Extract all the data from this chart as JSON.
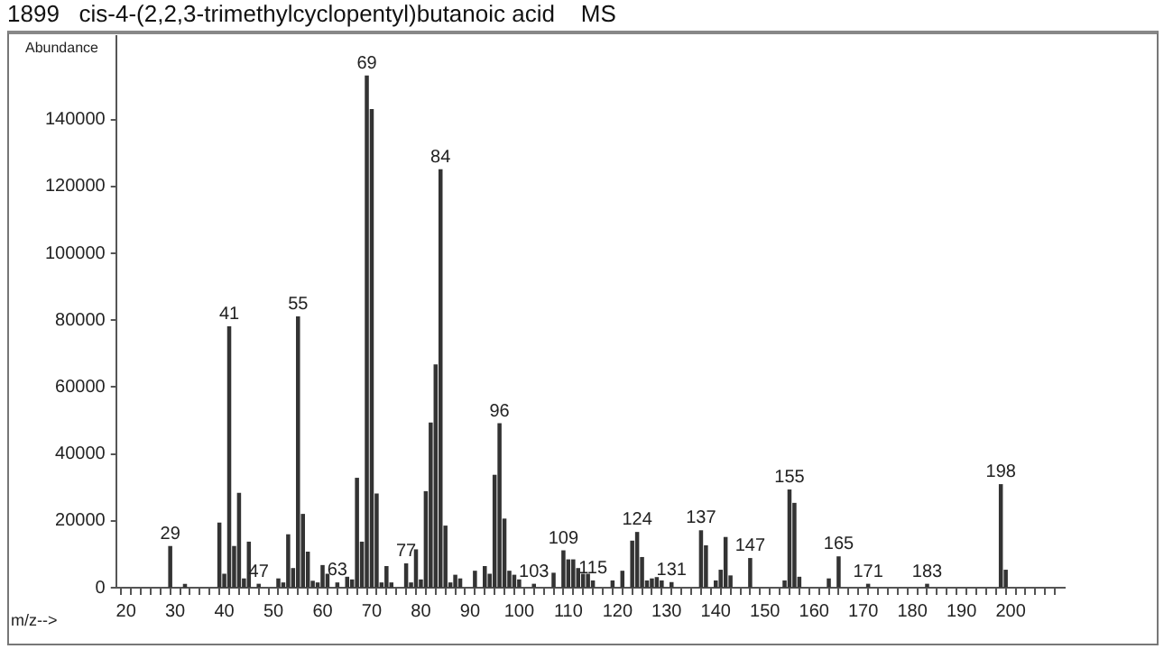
{
  "chart_data": {
    "type": "bar",
    "title": "1899   cis-4-(2,2,3-trimethylcyclopentyl)butanoic acid    MS",
    "xlabel": "m/z-->",
    "ylabel": "Abundance",
    "color": "#333333",
    "x": [
      29,
      32,
      39,
      40,
      41,
      42,
      43,
      44,
      45,
      47,
      51,
      52,
      53,
      54,
      55,
      56,
      57,
      58,
      59,
      60,
      61,
      63,
      65,
      66,
      67,
      68,
      69,
      70,
      71,
      72,
      73,
      74,
      77,
      78,
      79,
      80,
      81,
      82,
      83,
      84,
      85,
      86,
      87,
      88,
      91,
      93,
      94,
      95,
      96,
      97,
      98,
      99,
      100,
      103,
      107,
      109,
      110,
      111,
      112,
      113,
      114,
      115,
      119,
      121,
      123,
      124,
      125,
      126,
      127,
      128,
      129,
      131,
      137,
      138,
      140,
      141,
      142,
      143,
      147,
      154,
      155,
      156,
      157,
      163,
      165,
      171,
      183,
      198,
      199
    ],
    "values": [
      12300,
      1000,
      19300,
      4000,
      78000,
      12300,
      28200,
      2600,
      13600,
      1000,
      2600,
      1400,
      15800,
      5700,
      81000,
      21900,
      10600,
      1900,
      1400,
      6600,
      4000,
      1400,
      3100,
      2300,
      32700,
      13600,
      153000,
      143000,
      28000,
      1400,
      6300,
      1400,
      7100,
      1400,
      11300,
      2300,
      28700,
      49200,
      66600,
      125000,
      18400,
      1400,
      3700,
      2600,
      4900,
      6300,
      4000,
      33600,
      49000,
      20500,
      4900,
      3700,
      2300,
      1000,
      4300,
      11000,
      8300,
      8300,
      5700,
      4000,
      4000,
      2000,
      2000,
      4900,
      13900,
      16500,
      9000,
      2000,
      2600,
      3000,
      2000,
      1500,
      17000,
      12500,
      2000,
      5200,
      15000,
      3500,
      8700,
      2000,
      29200,
      25200,
      3100,
      2600,
      9200,
      1000,
      1000,
      30800,
      5200
    ],
    "annotations": [
      {
        "text": "29",
        "x": 29,
        "y": 12300
      },
      {
        "text": "41",
        "x": 41,
        "y": 78000
      },
      {
        "text": "47",
        "x": 47,
        "y": 1000
      },
      {
        "text": "55",
        "x": 55,
        "y": 81000
      },
      {
        "text": "63",
        "x": 63,
        "y": 1400
      },
      {
        "text": "69",
        "x": 69,
        "y": 153000
      },
      {
        "text": "77",
        "x": 77,
        "y": 7100
      },
      {
        "text": "84",
        "x": 84,
        "y": 125000
      },
      {
        "text": "96",
        "x": 96,
        "y": 49000
      },
      {
        "text": "103",
        "x": 103,
        "y": 1000
      },
      {
        "text": "109",
        "x": 109,
        "y": 11000
      },
      {
        "text": "115",
        "x": 115,
        "y": 2000
      },
      {
        "text": "124",
        "x": 124,
        "y": 16500
      },
      {
        "text": "131",
        "x": 131,
        "y": 1500
      },
      {
        "text": "137",
        "x": 137,
        "y": 17000
      },
      {
        "text": "147",
        "x": 147,
        "y": 8700
      },
      {
        "text": "155",
        "x": 155,
        "y": 29200
      },
      {
        "text": "165",
        "x": 165,
        "y": 9200
      },
      {
        "text": "171",
        "x": 171,
        "y": 1000
      },
      {
        "text": "183",
        "x": 183,
        "y": 1000
      },
      {
        "text": "198",
        "x": 198,
        "y": 30800
      }
    ],
    "xlim": [
      18,
      211
    ],
    "xticks": [
      20,
      {
        "value": 22,
        "label": null
      },
      {
        "value": 24,
        "label": null
      },
      {
        "value": 26,
        "label": null
      },
      {
        "value": 28,
        "label": null
      },
      30,
      {
        "value": 32,
        "label": null
      },
      {
        "value": 34,
        "label": null
      },
      {
        "value": 36,
        "label": null
      },
      {
        "value": 38,
        "label": null
      },
      40,
      {
        "value": 42,
        "label": null
      },
      {
        "value": 44,
        "label": null
      },
      {
        "value": 46,
        "label": null
      },
      {
        "value": 48,
        "label": null
      },
      50,
      {
        "value": 52,
        "label": null
      },
      {
        "value": 54,
        "label": null
      },
      {
        "value": 56,
        "label": null
      },
      {
        "value": 58,
        "label": null
      },
      60,
      {
        "value": 62,
        "label": null
      },
      {
        "value": 64,
        "label": null
      },
      {
        "value": 66,
        "label": null
      },
      {
        "value": 68,
        "label": null
      },
      70,
      {
        "value": 72,
        "label": null
      },
      {
        "value": 74,
        "label": null
      },
      {
        "value": 76,
        "label": null
      },
      {
        "value": 78,
        "label": null
      },
      80,
      {
        "value": 82,
        "label": null
      },
      {
        "value": 84,
        "label": null
      },
      {
        "value": 86,
        "label": null
      },
      {
        "value": 88,
        "label": null
      },
      90,
      {
        "value": 92,
        "label": null
      },
      {
        "value": 94,
        "label": null
      },
      {
        "value": 96,
        "label": null
      },
      {
        "value": 98,
        "label": null
      },
      100,
      {
        "value": 102,
        "label": null
      },
      {
        "value": 104,
        "label": null
      },
      {
        "value": 106,
        "label": null
      },
      {
        "value": 108,
        "label": null
      },
      110,
      {
        "value": 112,
        "label": null
      },
      {
        "value": 114,
        "label": null
      },
      {
        "value": 116,
        "label": null
      },
      {
        "value": 118,
        "label": null
      },
      120,
      {
        "value": 122,
        "label": null
      },
      {
        "value": 124,
        "label": null
      },
      {
        "value": 126,
        "label": null
      },
      {
        "value": 128,
        "label": null
      },
      130,
      {
        "value": 132,
        "label": null
      },
      {
        "value": 134,
        "label": null
      },
      {
        "value": 136,
        "label": null
      },
      {
        "value": 138,
        "label": null
      },
      140,
      {
        "value": 142,
        "label": null
      },
      {
        "value": 144,
        "label": null
      },
      {
        "value": 146,
        "label": null
      },
      {
        "value": 148,
        "label": null
      },
      150,
      {
        "value": 152,
        "label": null
      },
      {
        "value": 154,
        "label": null
      },
      {
        "value": 156,
        "label": null
      },
      {
        "value": 158,
        "label": null
      },
      160,
      {
        "value": 162,
        "label": null
      },
      {
        "value": 164,
        "label": null
      },
      {
        "value": 166,
        "label": null
      },
      {
        "value": 168,
        "label": null
      },
      170,
      {
        "value": 172,
        "label": null
      },
      {
        "value": 174,
        "label": null
      },
      {
        "value": 176,
        "label": null
      },
      {
        "value": 178,
        "label": null
      },
      180,
      {
        "value": 182,
        "label": null
      },
      {
        "value": 184,
        "label": null
      },
      {
        "value": 186,
        "label": null
      },
      {
        "value": 188,
        "label": null
      },
      190,
      {
        "value": 192,
        "label": null
      },
      {
        "value": 194,
        "label": null
      },
      {
        "value": 196,
        "label": null
      },
      {
        "value": 198,
        "label": null
      },
      200,
      {
        "value": 202,
        "label": null
      },
      {
        "value": 204,
        "label": null
      },
      {
        "value": 206,
        "label": null
      },
      {
        "value": 208,
        "label": null
      }
    ],
    "ylim": [
      0,
      165000
    ],
    "yticks": [
      0,
      20000,
      40000,
      60000,
      80000,
      100000,
      120000,
      140000
    ],
    "grid": false,
    "legend": false
  }
}
